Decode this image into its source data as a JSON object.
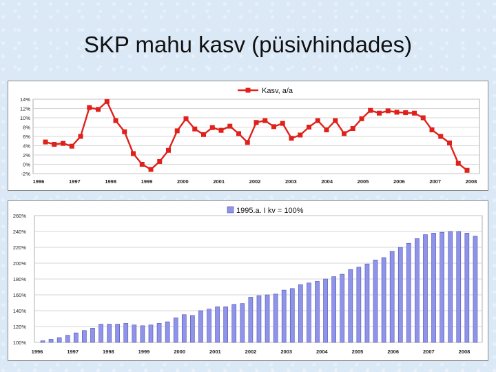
{
  "slide": {
    "title": "SKP mahu kasv (püsivhindades)"
  },
  "chart_data": [
    {
      "type": "line",
      "x_tick_labels": [
        "1996",
        "1997",
        "1998",
        "1999",
        "2000",
        "2001",
        "2002",
        "2003",
        "2004",
        "2005",
        "2006",
        "2007",
        "2008"
      ],
      "series": [
        {
          "name": "Kasv, a/a",
          "color": "#e0201b",
          "values": [
            4.8,
            4.3,
            4.5,
            3.9,
            6.0,
            12.2,
            11.8,
            13.5,
            9.4,
            7.0,
            2.3,
            0.0,
            -1.1,
            0.6,
            3.0,
            7.2,
            9.8,
            7.6,
            6.4,
            7.9,
            7.3,
            8.2,
            6.6,
            4.7,
            9.0,
            9.4,
            8.1,
            8.8,
            5.6,
            6.3,
            8.0,
            9.4,
            7.4,
            9.4,
            6.6,
            7.7,
            9.8,
            11.6,
            11.0,
            11.5,
            11.2,
            11.1,
            11.0,
            10.0,
            7.4,
            6.0,
            4.6,
            0.2,
            -1.3
          ]
        }
      ],
      "ylim": [
        -2,
        14
      ],
      "y_ticks": [
        -2,
        0,
        2,
        4,
        6,
        8,
        10,
        12,
        14
      ],
      "y_tick_labels": [
        "-2%",
        "0%",
        "2%",
        "4%",
        "6%",
        "8%",
        "10%",
        "12%",
        "14%"
      ],
      "grid": true,
      "legend": "top-center"
    },
    {
      "type": "bar",
      "x_tick_labels": [
        "1996",
        "1997",
        "1998",
        "1999",
        "2000",
        "2001",
        "2002",
        "2003",
        "2004",
        "2005",
        "2006",
        "2007",
        "2008"
      ],
      "series": [
        {
          "name": "1995.a. I kv = 100%",
          "color": "#8f94e8",
          "values": [
            102,
            104,
            106,
            109,
            112,
            115,
            118,
            123,
            123,
            123,
            124,
            122,
            121,
            122,
            124,
            126,
            131,
            135,
            134,
            140,
            142,
            145,
            145,
            148,
            149,
            157,
            159,
            160,
            161,
            166,
            168,
            173,
            175,
            177,
            180,
            183,
            186,
            192,
            195,
            199,
            204,
            207,
            215,
            220,
            225,
            231,
            236,
            238,
            239,
            240,
            240,
            238,
            234
          ]
        }
      ],
      "ylim": [
        100,
        260
      ],
      "y_ticks": [
        100,
        120,
        140,
        160,
        180,
        200,
        220,
        240,
        260
      ],
      "y_tick_labels": [
        "100%",
        "120%",
        "140%",
        "160%",
        "180%",
        "200%",
        "220%",
        "240%",
        "260%"
      ],
      "grid": true,
      "legend": "top-center"
    }
  ]
}
